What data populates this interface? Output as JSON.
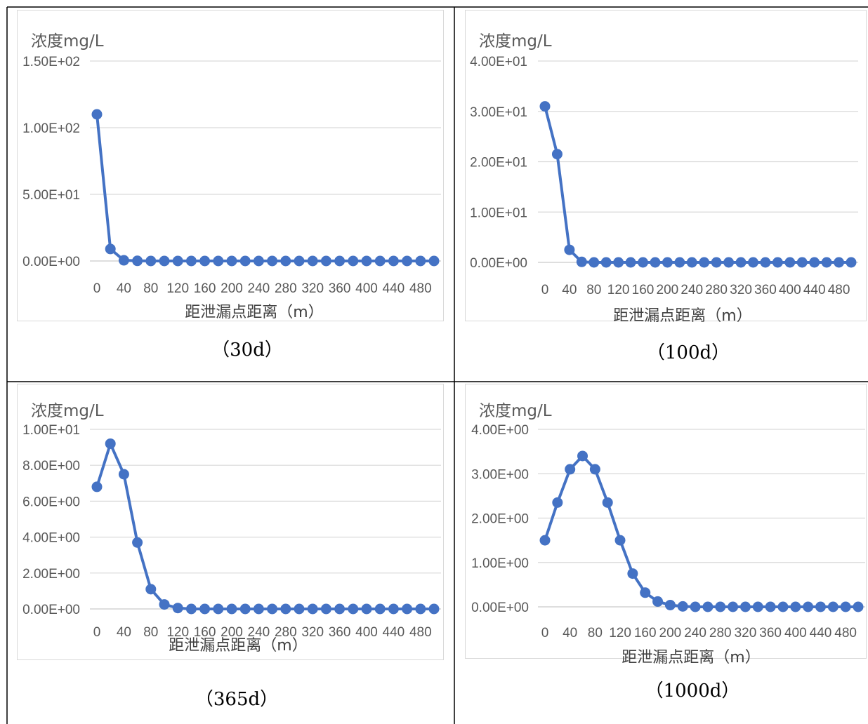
{
  "chart_data": [
    {
      "type": "line",
      "ylabel": "浓度mg/L",
      "xlabel": "距泄漏点距离（m）",
      "caption": "（30d）",
      "y_tick_labels": [
        "0.00E+00",
        "5.00E+01",
        "1.00E+02",
        "1.50E+02"
      ],
      "ylim": [
        0,
        150
      ],
      "x_tick_labels": [
        "0",
        "40",
        "80",
        "120",
        "160",
        "200",
        "240",
        "280",
        "320",
        "360",
        "400",
        "440",
        "480"
      ],
      "x": [
        0,
        20,
        40,
        60,
        80,
        100,
        120,
        140,
        160,
        180,
        200,
        220,
        240,
        260,
        280,
        300,
        320,
        340,
        360,
        380,
        400,
        420,
        440,
        460,
        480,
        500
      ],
      "series": [
        {
          "values": [
            110,
            9,
            0.5,
            0.1,
            0,
            0,
            0,
            0,
            0,
            0,
            0,
            0,
            0,
            0,
            0,
            0,
            0,
            0,
            0,
            0,
            0,
            0,
            0,
            0,
            0,
            0
          ]
        }
      ],
      "grid": true,
      "color": "#4472c4"
    },
    {
      "type": "line",
      "ylabel": "浓度mg/L",
      "xlabel": "距泄漏点距离（m）",
      "caption": "（100d）",
      "y_tick_labels": [
        "0.00E+00",
        "1.00E+01",
        "2.00E+01",
        "3.00E+01",
        "4.00E+01"
      ],
      "ylim": [
        0,
        40
      ],
      "x_tick_labels": [
        "0",
        "40",
        "80",
        "120",
        "160",
        "200",
        "240",
        "280",
        "320",
        "360",
        "400",
        "440",
        "480"
      ],
      "x": [
        0,
        20,
        40,
        60,
        80,
        100,
        120,
        140,
        160,
        180,
        200,
        220,
        240,
        260,
        280,
        300,
        320,
        340,
        360,
        380,
        400,
        420,
        440,
        460,
        480,
        500
      ],
      "series": [
        {
          "values": [
            31,
            21.5,
            2.5,
            0.1,
            0,
            0,
            0,
            0,
            0,
            0,
            0,
            0,
            0,
            0,
            0,
            0,
            0,
            0,
            0,
            0,
            0,
            0,
            0,
            0,
            0,
            0
          ]
        }
      ],
      "grid": true,
      "color": "#4472c4"
    },
    {
      "type": "line",
      "ylabel": "浓度mg/L",
      "xlabel": "距泄漏点距离（m）",
      "caption": "（365d）",
      "y_tick_labels": [
        "0.00E+00",
        "2.00E+00",
        "4.00E+00",
        "6.00E+00",
        "8.00E+00",
        "1.00E+01"
      ],
      "ylim": [
        0,
        10
      ],
      "x_tick_labels": [
        "0",
        "40",
        "80",
        "120",
        "160",
        "200",
        "240",
        "280",
        "320",
        "360",
        "400",
        "440",
        "480"
      ],
      "x": [
        0,
        20,
        40,
        60,
        80,
        100,
        120,
        140,
        160,
        180,
        200,
        220,
        240,
        260,
        280,
        300,
        320,
        340,
        360,
        380,
        400,
        420,
        440,
        460,
        480,
        500
      ],
      "series": [
        {
          "values": [
            6.8,
            9.2,
            7.5,
            3.7,
            1.1,
            0.25,
            0.05,
            0,
            0,
            0,
            0,
            0,
            0,
            0,
            0,
            0,
            0,
            0,
            0,
            0,
            0,
            0,
            0,
            0,
            0,
            0
          ]
        }
      ],
      "grid": true,
      "color": "#4472c4"
    },
    {
      "type": "line",
      "ylabel": "浓度mg/L",
      "xlabel": "距泄漏点距离（m）",
      "caption": "（1000d）",
      "y_tick_labels": [
        "0.00E+00",
        "1.00E+00",
        "2.00E+00",
        "3.00E+00",
        "4.00E+00"
      ],
      "ylim": [
        0,
        4
      ],
      "x_tick_labels": [
        "0",
        "40",
        "80",
        "120",
        "160",
        "200",
        "240",
        "280",
        "320",
        "360",
        "400",
        "440",
        "480"
      ],
      "x": [
        0,
        20,
        40,
        60,
        80,
        100,
        120,
        140,
        160,
        180,
        200,
        220,
        240,
        260,
        280,
        300,
        320,
        340,
        360,
        380,
        400,
        420,
        440,
        460,
        480,
        500
      ],
      "series": [
        {
          "values": [
            1.5,
            2.35,
            3.1,
            3.4,
            3.1,
            2.35,
            1.5,
            0.75,
            0.32,
            0.12,
            0.04,
            0.01,
            0,
            0,
            0,
            0,
            0,
            0,
            0,
            0,
            0,
            0,
            0,
            0,
            0,
            0
          ]
        }
      ],
      "grid": true,
      "color": "#4472c4"
    }
  ]
}
